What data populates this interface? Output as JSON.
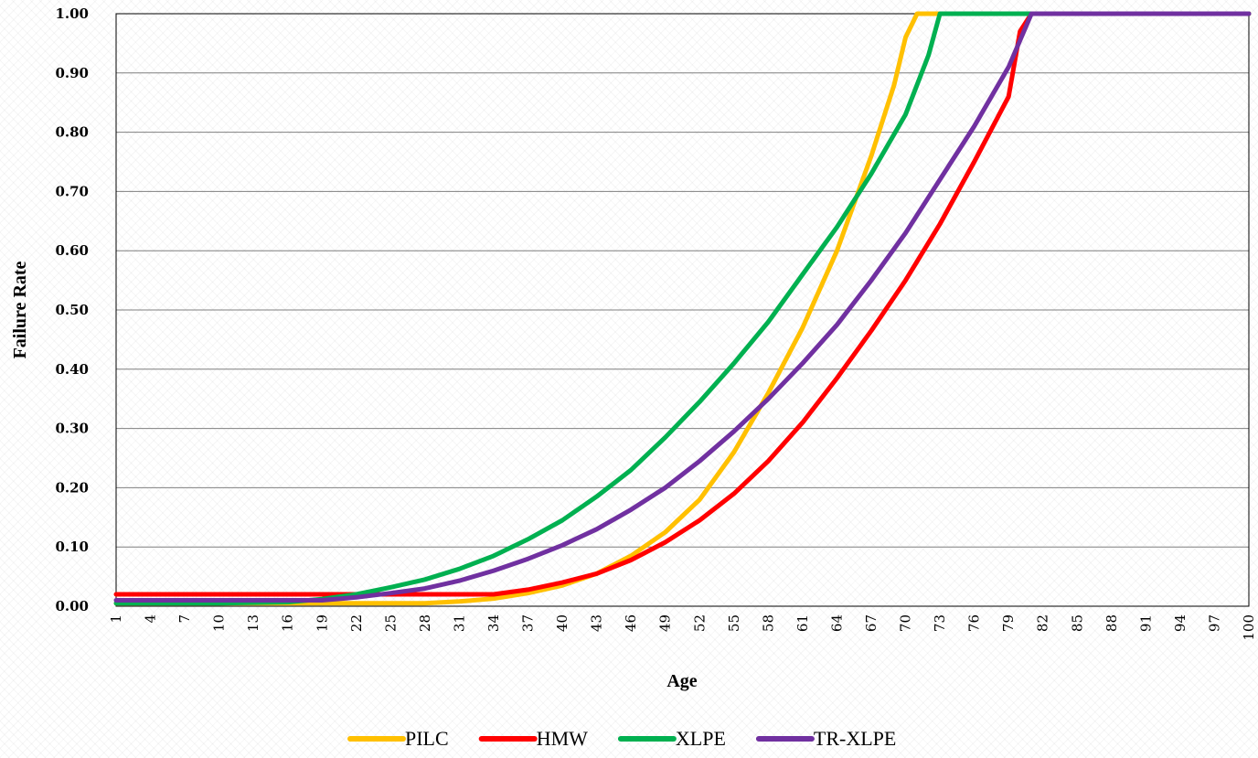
{
  "chart_data": {
    "type": "line",
    "xlabel": "Age",
    "ylabel": "Failure Rate",
    "xlim": [
      1,
      100
    ],
    "ylim": [
      0,
      1
    ],
    "x_tick_labels": [
      "1",
      "4",
      "7",
      "10",
      "13",
      "16",
      "19",
      "22",
      "25",
      "28",
      "31",
      "34",
      "37",
      "40",
      "43",
      "46",
      "49",
      "52",
      "55",
      "58",
      "61",
      "64",
      "67",
      "70",
      "73",
      "76",
      "79",
      "82",
      "85",
      "88",
      "91",
      "94",
      "97",
      "100"
    ],
    "y_tick_labels": [
      "0.00",
      "0.10",
      "0.20",
      "0.30",
      "0.40",
      "0.50",
      "0.60",
      "0.70",
      "0.80",
      "0.90",
      "1.00"
    ],
    "grid": "horizontal",
    "legend_position": "bottom",
    "series": [
      {
        "name": "PILC",
        "color": "#FFC000",
        "points": [
          [
            1,
            0.005
          ],
          [
            10,
            0.005
          ],
          [
            20,
            0.005
          ],
          [
            28,
            0.005
          ],
          [
            31,
            0.008
          ],
          [
            34,
            0.013
          ],
          [
            37,
            0.022
          ],
          [
            40,
            0.035
          ],
          [
            43,
            0.055
          ],
          [
            46,
            0.085
          ],
          [
            49,
            0.125
          ],
          [
            52,
            0.18
          ],
          [
            55,
            0.26
          ],
          [
            58,
            0.36
          ],
          [
            61,
            0.47
          ],
          [
            64,
            0.6
          ],
          [
            67,
            0.76
          ],
          [
            69,
            0.88
          ],
          [
            70,
            0.96
          ],
          [
            71,
            1.0
          ],
          [
            100,
            1.0
          ]
        ]
      },
      {
        "name": "HMW",
        "color": "#FF0000",
        "points": [
          [
            1,
            0.02
          ],
          [
            10,
            0.02
          ],
          [
            20,
            0.02
          ],
          [
            34,
            0.02
          ],
          [
            37,
            0.028
          ],
          [
            40,
            0.04
          ],
          [
            43,
            0.055
          ],
          [
            46,
            0.078
          ],
          [
            49,
            0.108
          ],
          [
            52,
            0.145
          ],
          [
            55,
            0.19
          ],
          [
            58,
            0.245
          ],
          [
            61,
            0.31
          ],
          [
            64,
            0.385
          ],
          [
            67,
            0.465
          ],
          [
            70,
            0.55
          ],
          [
            73,
            0.645
          ],
          [
            76,
            0.75
          ],
          [
            79,
            0.86
          ],
          [
            80,
            0.97
          ],
          [
            81,
            1.0
          ],
          [
            100,
            1.0
          ]
        ]
      },
      {
        "name": "XLPE",
        "color": "#00B050",
        "points": [
          [
            1,
            0.005
          ],
          [
            10,
            0.005
          ],
          [
            16,
            0.007
          ],
          [
            19,
            0.012
          ],
          [
            22,
            0.02
          ],
          [
            25,
            0.032
          ],
          [
            28,
            0.045
          ],
          [
            31,
            0.063
          ],
          [
            34,
            0.085
          ],
          [
            37,
            0.113
          ],
          [
            40,
            0.145
          ],
          [
            43,
            0.185
          ],
          [
            46,
            0.23
          ],
          [
            49,
            0.285
          ],
          [
            52,
            0.345
          ],
          [
            55,
            0.41
          ],
          [
            58,
            0.48
          ],
          [
            61,
            0.56
          ],
          [
            64,
            0.64
          ],
          [
            67,
            0.73
          ],
          [
            70,
            0.83
          ],
          [
            72,
            0.93
          ],
          [
            73,
            1.0
          ],
          [
            100,
            1.0
          ]
        ]
      },
      {
        "name": "TR-XLPE",
        "color": "#7030A0",
        "points": [
          [
            1,
            0.01
          ],
          [
            10,
            0.01
          ],
          [
            19,
            0.01
          ],
          [
            22,
            0.015
          ],
          [
            25,
            0.022
          ],
          [
            28,
            0.03
          ],
          [
            31,
            0.043
          ],
          [
            34,
            0.06
          ],
          [
            37,
            0.08
          ],
          [
            40,
            0.103
          ],
          [
            43,
            0.13
          ],
          [
            46,
            0.163
          ],
          [
            49,
            0.2
          ],
          [
            52,
            0.245
          ],
          [
            55,
            0.295
          ],
          [
            58,
            0.35
          ],
          [
            61,
            0.41
          ],
          [
            64,
            0.475
          ],
          [
            67,
            0.55
          ],
          [
            70,
            0.63
          ],
          [
            73,
            0.72
          ],
          [
            76,
            0.81
          ],
          [
            79,
            0.91
          ],
          [
            81,
            1.0
          ],
          [
            100,
            1.0
          ]
        ]
      }
    ]
  }
}
